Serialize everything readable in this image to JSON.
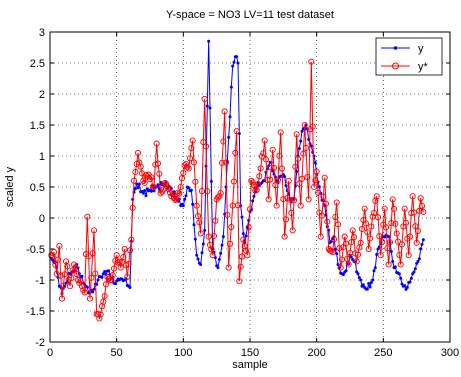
{
  "chart_data": {
    "type": "line",
    "title": "Y-space = NO3 LV=11 test dataset",
    "xlabel": "sample",
    "ylabel": "scaled y",
    "xlim": [
      0,
      300
    ],
    "ylim": [
      -2,
      3
    ],
    "xticks": [
      0,
      50,
      100,
      150,
      200,
      250,
      300
    ],
    "yticks": [
      -2,
      -1.5,
      -1,
      -0.5,
      0,
      0.5,
      1,
      1.5,
      2,
      2.5,
      3
    ],
    "xtick_labels": [
      "0",
      "50",
      "100",
      "150",
      "200",
      "250",
      "300"
    ],
    "ytick_labels": [
      "-2",
      "-1.5",
      "-1",
      "-0.5",
      "0",
      "0.5",
      "1",
      "1.5",
      "2",
      "2.5",
      "3"
    ],
    "grid": true,
    "legend_position": "top-right",
    "series": [
      {
        "name": "y",
        "color": "#0000ff",
        "marker": "dot",
        "keypoints": [
          [
            1,
            -0.65
          ],
          [
            3,
            -0.72
          ],
          [
            5,
            -0.8
          ],
          [
            7,
            -1.1
          ],
          [
            9,
            -1.22
          ],
          [
            12,
            -1.05
          ],
          [
            15,
            -0.9
          ],
          [
            18,
            -0.85
          ],
          [
            20,
            -0.75
          ],
          [
            23,
            -0.95
          ],
          [
            27,
            -1.1
          ],
          [
            30,
            -1.2
          ],
          [
            33,
            -1.15
          ],
          [
            36,
            -1.0
          ],
          [
            40,
            -0.9
          ],
          [
            44,
            -0.85
          ],
          [
            48,
            -1.05
          ],
          [
            52,
            -1.0
          ],
          [
            56,
            -1.0
          ],
          [
            60,
            -1.12
          ],
          [
            62,
            0.3
          ],
          [
            65,
            0.55
          ],
          [
            70,
            0.4
          ],
          [
            75,
            0.45
          ],
          [
            80,
            0.5
          ],
          [
            85,
            0.55
          ],
          [
            90,
            0.5
          ],
          [
            95,
            0.3
          ],
          [
            100,
            0.2
          ],
          [
            103,
            0.5
          ],
          [
            106,
            0.45
          ],
          [
            110,
            -0.6
          ],
          [
            113,
            -0.75
          ],
          [
            116,
            -0.2
          ],
          [
            119,
            2.85
          ],
          [
            122,
            -0.5
          ],
          [
            126,
            -0.8
          ],
          [
            130,
            -0.3
          ],
          [
            134,
            1.3
          ],
          [
            137,
            2.45
          ],
          [
            139,
            2.6
          ],
          [
            141,
            2.5
          ],
          [
            143,
            0.2
          ],
          [
            146,
            -0.4
          ],
          [
            150,
            0.1
          ],
          [
            155,
            0.5
          ],
          [
            160,
            0.6
          ],
          [
            165,
            0.9
          ],
          [
            170,
            0.6
          ],
          [
            175,
            0.7
          ],
          [
            180,
            0.3
          ],
          [
            183,
            0.3
          ],
          [
            186,
            1.0
          ],
          [
            189,
            1.4
          ],
          [
            192,
            1.5
          ],
          [
            195,
            1.2
          ],
          [
            198,
            1.0
          ],
          [
            200,
            0.7
          ],
          [
            203,
            0.4
          ],
          [
            206,
            0.2
          ],
          [
            210,
            -0.4
          ],
          [
            213,
            -0.3
          ],
          [
            216,
            -0.75
          ],
          [
            219,
            -0.9
          ],
          [
            222,
            -0.85
          ],
          [
            225,
            -0.6
          ],
          [
            228,
            -0.7
          ],
          [
            231,
            -0.9
          ],
          [
            234,
            -1.1
          ],
          [
            238,
            -1.15
          ],
          [
            242,
            -1.0
          ],
          [
            246,
            -0.5
          ],
          [
            250,
            -0.3
          ],
          [
            254,
            -0.3
          ],
          [
            258,
            -0.8
          ],
          [
            262,
            -0.9
          ],
          [
            265,
            -1.1
          ],
          [
            268,
            -1.12
          ],
          [
            272,
            -0.9
          ],
          [
            276,
            -0.7
          ],
          [
            280,
            -0.35
          ]
        ]
      },
      {
        "name": "y*",
        "color": "#ff0000",
        "marker": "circle",
        "keypoints": [
          [
            1,
            -0.6
          ],
          [
            3,
            -0.55
          ],
          [
            5,
            -0.9
          ],
          [
            7,
            -0.45
          ],
          [
            9,
            -1.3
          ],
          [
            12,
            -0.7
          ],
          [
            15,
            -1.1
          ],
          [
            18,
            -0.75
          ],
          [
            21,
            -1.0
          ],
          [
            24,
            -1.1
          ],
          [
            26,
            -1.2
          ],
          [
            28,
            0.02
          ],
          [
            30,
            -1.3
          ],
          [
            33,
            -0.2
          ],
          [
            35,
            -1.55
          ],
          [
            37,
            -1.62
          ],
          [
            40,
            -1.35
          ],
          [
            43,
            -0.95
          ],
          [
            46,
            -1.0
          ],
          [
            50,
            -0.6
          ],
          [
            53,
            -0.8
          ],
          [
            56,
            -0.5
          ],
          [
            58,
            -0.95
          ],
          [
            61,
            -0.35
          ],
          [
            63,
            0.6
          ],
          [
            66,
            1.05
          ],
          [
            70,
            0.6
          ],
          [
            74,
            0.7
          ],
          [
            78,
            0.5
          ],
          [
            80,
            1.2
          ],
          [
            83,
            0.4
          ],
          [
            87,
            0.55
          ],
          [
            91,
            0.35
          ],
          [
            95,
            0.3
          ],
          [
            98,
            0.5
          ],
          [
            101,
            0.85
          ],
          [
            104,
            0.8
          ],
          [
            107,
            1.25
          ],
          [
            110,
            0.2
          ],
          [
            113,
            -0.25
          ],
          [
            116,
            1.92
          ],
          [
            119,
            -0.3
          ],
          [
            122,
            -0.6
          ],
          [
            125,
            0.3
          ],
          [
            128,
            0.4
          ],
          [
            131,
            1.72
          ],
          [
            134,
            -0.8
          ],
          [
            137,
            0.2
          ],
          [
            140,
            1.4
          ],
          [
            142,
            -1.02
          ],
          [
            145,
            -0.35
          ],
          [
            148,
            -0.6
          ],
          [
            151,
            0.6
          ],
          [
            155,
            0.45
          ],
          [
            158,
            0.8
          ],
          [
            161,
            1.25
          ],
          [
            164,
            0.3
          ],
          [
            167,
            1.1
          ],
          [
            170,
            0.2
          ],
          [
            173,
            1.38
          ],
          [
            176,
            -0.3
          ],
          [
            179,
            0.6
          ],
          [
            182,
            -0.2
          ],
          [
            185,
            1.35
          ],
          [
            188,
            0.2
          ],
          [
            191,
            1.5
          ],
          [
            194,
            0.3
          ],
          [
            196,
            2.52
          ],
          [
            198,
            0.5
          ],
          [
            200,
            0.75
          ],
          [
            203,
            -0.3
          ],
          [
            206,
            0.65
          ],
          [
            209,
            -0.5
          ],
          [
            212,
            -0.55
          ],
          [
            215,
            0.25
          ],
          [
            218,
            -0.8
          ],
          [
            221,
            -0.3
          ],
          [
            224,
            -0.75
          ],
          [
            227,
            -0.2
          ],
          [
            230,
            -0.7
          ],
          [
            233,
            -0.4
          ],
          [
            236,
            0.15
          ],
          [
            239,
            -0.5
          ],
          [
            242,
            0.02
          ],
          [
            245,
            0.35
          ],
          [
            248,
            -0.6
          ],
          [
            251,
            0.15
          ],
          [
            254,
            -0.75
          ],
          [
            257,
            0.3
          ],
          [
            260,
            -0.25
          ],
          [
            263,
            -0.75
          ],
          [
            266,
            0.15
          ],
          [
            269,
            -0.6
          ],
          [
            272,
            0.35
          ],
          [
            275,
            -0.4
          ],
          [
            278,
            0.32
          ],
          [
            280,
            0.1
          ]
        ]
      }
    ]
  }
}
